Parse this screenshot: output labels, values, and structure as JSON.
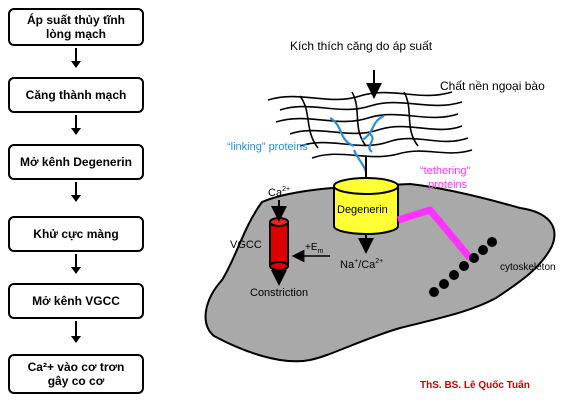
{
  "flowchart": {
    "steps": [
      {
        "line1": "Áp suất thủy tĩnh",
        "line2": "lòng mạch"
      },
      {
        "line1": "Căng thành mạch"
      },
      {
        "line1": "Mở kênh Degenerin"
      },
      {
        "line1": "Khử cực màng"
      },
      {
        "line1": "Mở kênh VGCC"
      },
      {
        "line1": "Ca²+ vào cơ trơn",
        "line2": "gây co cơ"
      }
    ]
  },
  "schema": {
    "stimulus_label": "Kích thích căng do áp suất",
    "ecm_label": "Chất nền ngoại bào",
    "linking_label": "“linking” proteins",
    "tethering_label_1": "“tethering”",
    "tethering_label_2": "proteins",
    "degenerin_label": "Degenerin",
    "ca_label": "Ca",
    "ca_sup": "2+",
    "vgcc_label": "VGCC",
    "em_label": "+E",
    "em_sub": "m",
    "ion_label_na": "Na",
    "ion_label_plus": "+",
    "ion_label_ca": "/Ca",
    "ion_label_sup": "2+",
    "constriction_label": "Constriction",
    "cytoskeleton_label": "cytoskeleton"
  },
  "credit": "ThS. BS. Lê Quốc Tuấn",
  "colors": {
    "cell": "#a9a9a9",
    "degenerin": "#ffff33",
    "vgcc": "#dd0000",
    "tethering": "#ff33ff",
    "linking": "#2a8fd8",
    "credit": "#cc0000"
  }
}
